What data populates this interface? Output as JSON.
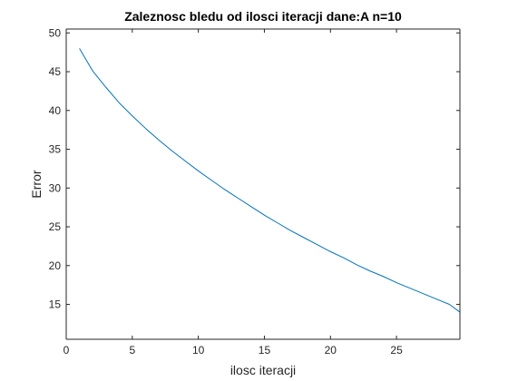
{
  "chart_data": {
    "type": "line",
    "title": "Zaleznosc bledu od ilosci iteracji dane:A n=10",
    "xlabel": "ilosc iteracji",
    "ylabel": "Error",
    "xlim": [
      0,
      29.8
    ],
    "ylim": [
      10.5,
      50.5
    ],
    "xticks": [
      0,
      5,
      10,
      15,
      20,
      25
    ],
    "yticks": [
      15,
      20,
      25,
      30,
      35,
      40,
      45,
      50
    ],
    "grid": false,
    "line_color": "#0072BD",
    "series": [
      {
        "x": [
          1,
          2,
          3,
          4,
          5,
          6,
          7,
          8,
          9,
          10,
          11,
          12,
          13,
          14,
          15,
          16,
          17,
          18,
          19,
          20,
          21,
          22,
          23,
          24,
          25,
          26,
          27,
          28,
          29,
          29.8
        ],
        "values": [
          48.0,
          45.1,
          43.0,
          41.0,
          39.3,
          37.7,
          36.2,
          34.8,
          33.5,
          32.2,
          31.0,
          29.8,
          28.7,
          27.6,
          26.5,
          25.5,
          24.5,
          23.6,
          22.7,
          21.8,
          21.0,
          20.1,
          19.3,
          18.6,
          17.8,
          17.1,
          16.4,
          15.7,
          15.0,
          14.0
        ]
      }
    ]
  }
}
